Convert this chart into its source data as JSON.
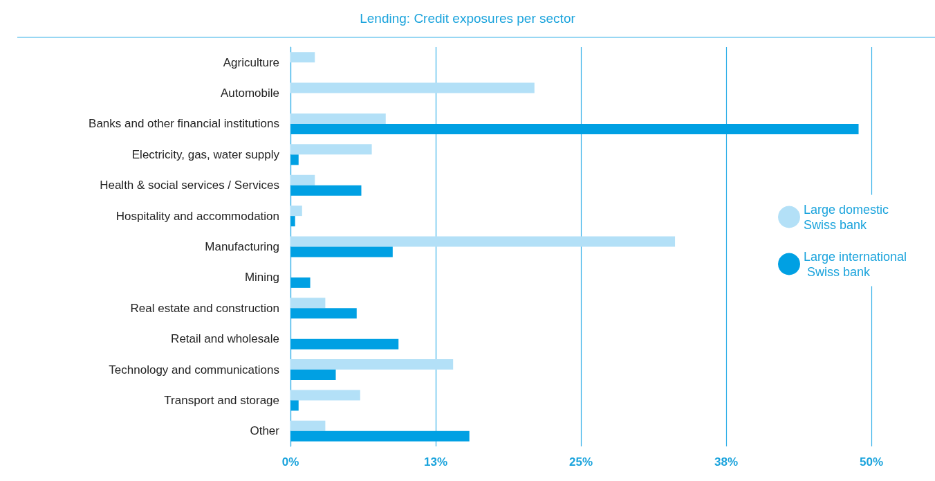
{
  "chart_data": {
    "type": "bar",
    "title": "Lending: Credit exposures per sector",
    "orientation": "horizontal",
    "categories": [
      "Agriculture",
      "Automobile",
      "Banks and other financial institutions",
      "Electricity, gas, water supply",
      "Health & social services / Services",
      "Hospitality and accommodation",
      "Manufacturing",
      "Mining",
      "Real estate and construction",
      "Retail and wholesale",
      "Technology and communications",
      "Transport and storage",
      "Other"
    ],
    "series": [
      {
        "name": "Large domestic Swiss bank",
        "color": "#b3e0f7",
        "values": [
          2.1,
          21.0,
          8.2,
          7.0,
          2.1,
          1.0,
          33.1,
          null,
          3.0,
          null,
          14.0,
          6.0,
          3.0
        ]
      },
      {
        "name": "Large international Swiss bank",
        "color": "#00a0e3",
        "values": [
          null,
          null,
          48.9,
          0.7,
          6.1,
          0.4,
          8.8,
          1.7,
          5.7,
          9.3,
          3.9,
          0.7,
          15.4
        ]
      }
    ],
    "xlim": [
      0,
      50
    ],
    "xticks": [
      {
        "value": 0,
        "label": "0%"
      },
      {
        "value": 12.5,
        "label": "13%"
      },
      {
        "value": 25,
        "label": "25%"
      },
      {
        "value": 37.5,
        "label": "38%"
      },
      {
        "value": 50,
        "label": "50%"
      }
    ],
    "grid": "x",
    "legend": "right"
  }
}
